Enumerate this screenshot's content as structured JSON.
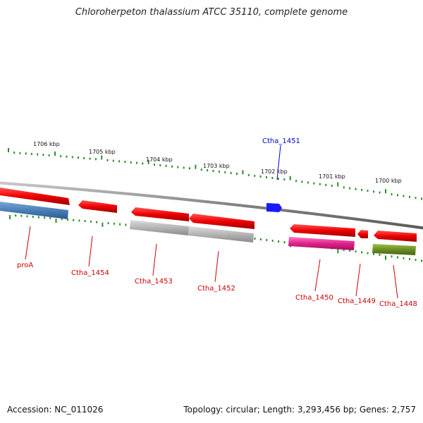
{
  "title": "Chloroherpeton thalassium ATCC 35110, complete genome",
  "footer": {
    "accession": "Accession: NC_011026",
    "summary": "Topology: circular; Length: 3,293,456 bp; Genes: 2,757"
  },
  "ticks": [
    "1706 kbp",
    "1705 kbp",
    "1704 kbp",
    "1703 kbp",
    "1702 kbp",
    "1701 kbp",
    "1700 kbp"
  ],
  "genes": [
    {
      "label": "proA",
      "color": "#cc0000",
      "fill": "#4a7fb5"
    },
    {
      "label": "Ctha_1454",
      "color": "#cc0000",
      "fill": "#e60000"
    },
    {
      "label": "Ctha_1453",
      "color": "#cc0000",
      "fill": "#b0b0b0"
    },
    {
      "label": "Ctha_1452",
      "color": "#cc0000",
      "fill": "#a0a0a0"
    },
    {
      "label": "Ctha_1451",
      "color": "#0000cc",
      "fill": "#1a1aff"
    },
    {
      "label": "Ctha_1450",
      "color": "#cc0000",
      "fill": "#e0208a"
    },
    {
      "label": "Ctha_1449",
      "color": "#cc0000",
      "fill": "#e60000"
    },
    {
      "label": "Ctha_1448",
      "color": "#cc0000",
      "fill": "#6b8e23"
    }
  ]
}
